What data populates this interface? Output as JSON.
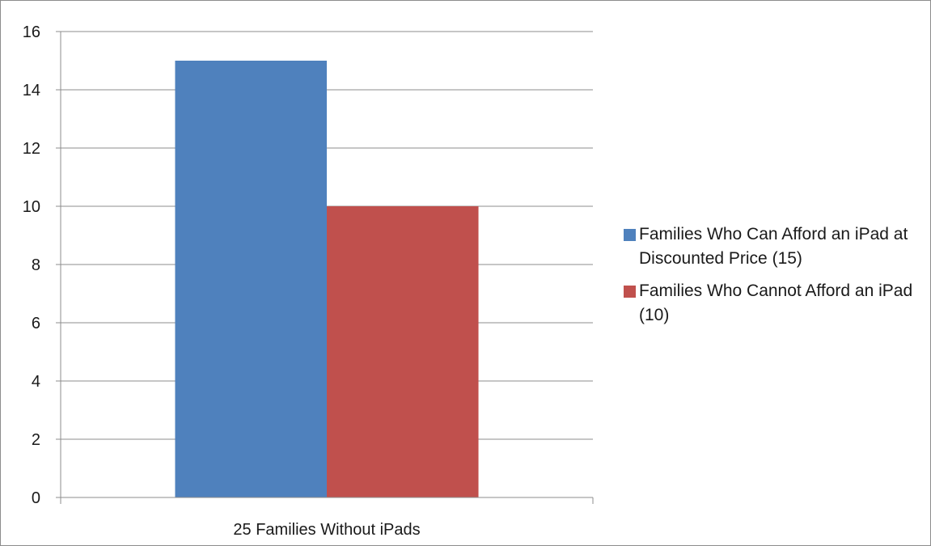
{
  "chart_data": {
    "type": "bar",
    "categories": [
      "25 Families Without iPads"
    ],
    "series": [
      {
        "name": "Families Who Can Afford an iPad at Discounted Price (15)",
        "values": [
          15
        ],
        "color": "#4F81BD"
      },
      {
        "name": "Families Who Cannot Afford an iPad (10)",
        "values": [
          10
        ],
        "color": "#C0504D"
      }
    ],
    "title": "",
    "xlabel": "",
    "ylabel": "",
    "ylim": [
      0,
      16
    ],
    "yticks": [
      0,
      2,
      4,
      6,
      8,
      10,
      12,
      14,
      16
    ],
    "grid": true,
    "legend_position": "right"
  }
}
